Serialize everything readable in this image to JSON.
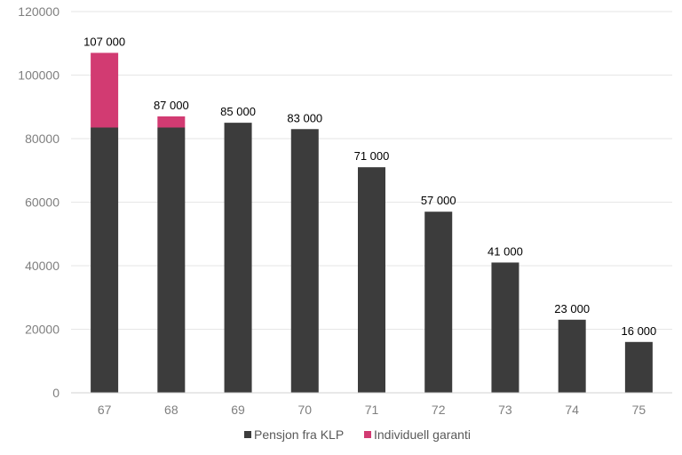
{
  "chart_data": {
    "type": "bar",
    "stacked": true,
    "categories": [
      "67",
      "68",
      "69",
      "70",
      "71",
      "72",
      "73",
      "74",
      "75"
    ],
    "series": [
      {
        "name": "Pensjon fra KLP",
        "color": "#3c3c3c",
        "values": [
          83500,
          83500,
          85000,
          83000,
          71000,
          57000,
          41000,
          23000,
          16000
        ]
      },
      {
        "name": "Individuell garanti",
        "color": "#d23b72",
        "values": [
          23500,
          3500,
          0,
          0,
          0,
          0,
          0,
          0,
          0
        ]
      }
    ],
    "data_labels": [
      "107 000",
      "87 000",
      "85 000",
      "83 000",
      "71 000",
      "57 000",
      "41 000",
      "23 000",
      "16 000"
    ],
    "totals": [
      107000,
      87000,
      85000,
      83000,
      71000,
      57000,
      41000,
      23000,
      16000
    ],
    "yticks": [
      "0",
      "20000",
      "40000",
      "60000",
      "80000",
      "100000",
      "120000"
    ],
    "ylim": [
      0,
      120000
    ],
    "grid": true,
    "legend_position": "bottom",
    "title": "",
    "xlabel": "",
    "ylabel": ""
  }
}
